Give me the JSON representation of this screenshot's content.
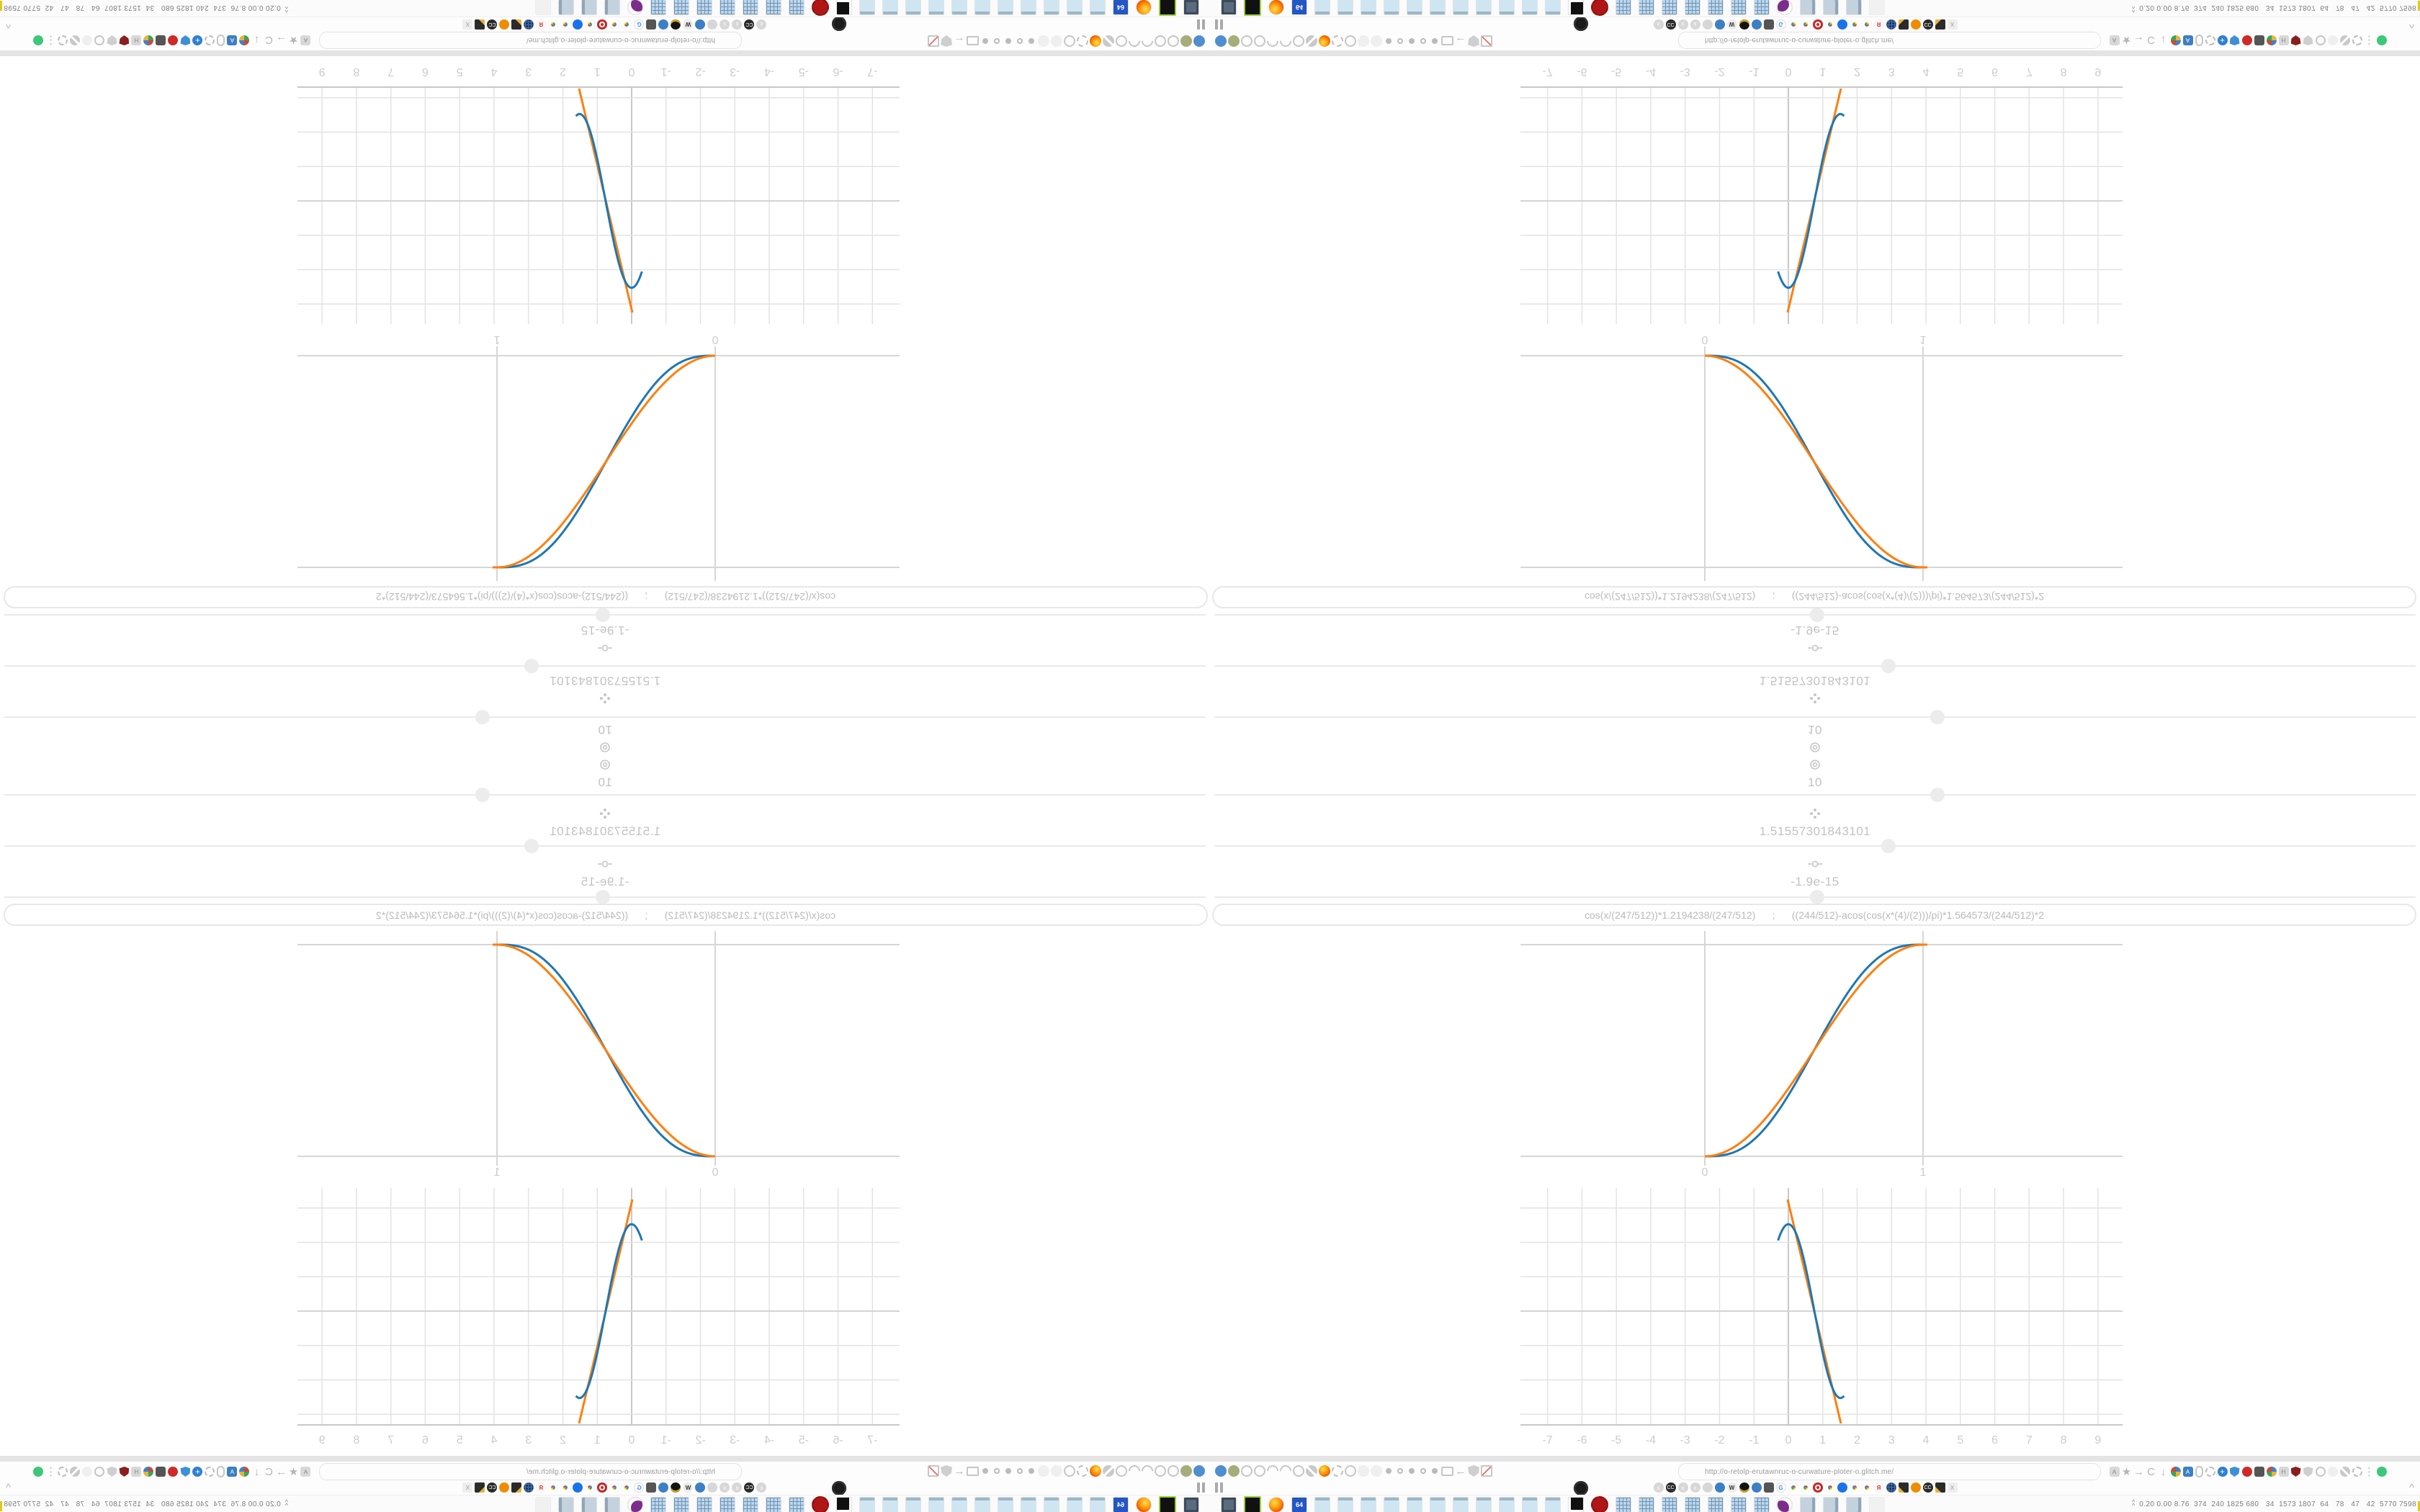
{
  "app": {
    "formula": "cos(x/(247/512))*1.2194238/(247/512)      ;      ((244/512)-acos(cos(x*(4)/(2)))/pi)*1.564573/(244/512)*2",
    "nodes": [
      {
        "icon": "dial-icon",
        "value": "10"
      },
      {
        "icon": "fan-icon",
        "value": "1.51557301843101"
      },
      {
        "icon": "coil-icon",
        "value": "-1.9e-15"
      }
    ]
  },
  "chart_data": [
    {
      "type": "line",
      "panel": "easing-comparison",
      "title": "",
      "xlabel": "",
      "ylabel": "",
      "xticks": [
        "0",
        "1"
      ],
      "xtick_values": [
        0,
        1
      ],
      "xlim": [
        -0.85,
        1.93
      ],
      "ylim": [
        -0.1,
        1.1
      ],
      "grid": {
        "x_lines": [
          0,
          1
        ],
        "y_lines": [
          0,
          1
        ]
      },
      "legend": "none",
      "series": [
        {
          "name": "cos(x/(247/512))*1.2194238/(247/512)",
          "color": "#1f77b4",
          "shape": "smootherstep rise 0-1",
          "points": [
            [
              0,
              0
            ],
            [
              0.25,
              0.1
            ],
            [
              0.5,
              0.5
            ],
            [
              0.75,
              0.9
            ],
            [
              1,
              1
            ]
          ]
        },
        {
          "name": "((244/512)-acos(cos(x*(4)/(2)))/pi)*1.564573/(244/512)*2",
          "color": "#ff7f0e",
          "shape": "cosine-ease rise 0-1",
          "points": [
            [
              0,
              0
            ],
            [
              0.25,
              0.15
            ],
            [
              0.5,
              0.5
            ],
            [
              0.75,
              0.85
            ],
            [
              1,
              1
            ]
          ]
        }
      ]
    },
    {
      "type": "line",
      "panel": "zoomed-out-grid",
      "title": "",
      "xlabel": "",
      "ylabel": "",
      "xticks": [
        "-7",
        "-6",
        "-5",
        "-4",
        "-3",
        "-2",
        "-1",
        "0",
        "1",
        "2",
        "3",
        "4",
        "5",
        "6",
        "7",
        "8",
        "9"
      ],
      "xtick_values": [
        -7,
        -6,
        -5,
        -4,
        -3,
        -2,
        -1,
        0,
        1,
        2,
        3,
        4,
        5,
        6,
        7,
        8,
        9
      ],
      "xlim": [
        -7.8,
        9.7
      ],
      "ylim": [
        -3.9,
        3.1
      ],
      "grid_spacing": 1,
      "legend": "none",
      "series": [
        {
          "name": "cosine segment",
          "color": "#1f77b4",
          "amplitude": 2.528,
          "x_range": [
            -0.3,
            1.62
          ],
          "description": "y = 2.528*cos(x/0.4824), steep descending S from peak to trough"
        },
        {
          "name": "triangle segment",
          "color": "#ff7f0e",
          "points": [
            [
              0,
              3.17
            ],
            [
              1.51,
              -3.19
            ]
          ],
          "description": "straight steep descending line"
        }
      ]
    }
  ],
  "chrome": {
    "url": "http://o-retolp-erutawnruc-o-curwature-ploter-o.glitch.me/",
    "monitor_stats": "0.20 0.00 8.76  374  240 1825 680   34  1573 1807  64   78   47   42  5770 7598",
    "row1_left": [
      "balloon-icon",
      "olive-circle-icon",
      "globe-icon",
      "globe-icon",
      "arc-icon",
      "arc-icon",
      "globe-icon",
      "wrench-icon",
      "firefox-icon",
      "gear-icon",
      "globe-icon",
      "faint-circle-icon",
      "faint-circle-icon",
      "radio-dot-icon",
      "radio-circle-icon",
      "radio-dot-icon",
      "radio-circle-icon",
      "radio-dot-icon",
      "folder-icon",
      "back-arrow-icon",
      "shield-icon",
      "blocked-page-icon"
    ],
    "row1_right": [
      "translate-icon",
      "star-icon",
      "forward-arrow-icon",
      "reload-icon",
      "download-icon",
      "highlighter-icon",
      "translate-blue-icon",
      "mouse-icon",
      "gear-icon",
      "add-blue-icon",
      "shield-blue-icon",
      "recorder-red-icon",
      "trash-icon",
      "compass-icon",
      "h-badge-icon",
      "ublock-icon",
      "shield-icon",
      "globe-icon",
      "puzzle-icon",
      "wrench-icon",
      "gear-icon",
      "overflow-menu-icon",
      "green-dot-icon"
    ],
    "row2_left": [
      "pause-icon"
    ],
    "row2_mid": [
      "vinyl-icon"
    ],
    "row2_cluster": [
      "muted-speaker-icon",
      "cc-icon",
      "muted-speaker-icon",
      "muted-speaker-icon",
      "speaker-circle-icon",
      "globe-blue-icon",
      "wikipedia-icon",
      "black-gold-icon",
      "globe-blue-icon",
      "trash-icon",
      "gtranslate-icon",
      "google-icon",
      "google-icon",
      "red-flower-icon",
      "google-icon",
      "blue-comma-icon",
      "google-icon",
      "google-icon",
      "yandex-icon",
      "grid-ball-icon",
      "photos-icon",
      "orange-burst-icon",
      "cc-icon",
      "photos-icon",
      "hourglass-icon"
    ],
    "row2_end": [
      "collapse-chevron-icon"
    ],
    "taskbar": [
      "display-settings-icon",
      "terminal-icon",
      "firefox-icon",
      "floppy64-icon",
      "notepad-icon",
      "notepad-icon",
      "notepad-icon",
      "notepad-icon",
      "notepad-icon",
      "notepad-icon",
      "notepad-icon",
      "notepad-icon",
      "notepad-icon",
      "notepad-icon",
      "notepad-icon",
      "cat-icon",
      "red-gear-icon",
      "calculator-icon",
      "calculator-icon",
      "calculator-icon",
      "calculator-icon",
      "calculator-icon",
      "calculator-icon",
      "calculator-icon",
      "owl-icon",
      "scroll-icon",
      "scroll-icon",
      "scroll-icon",
      "ghost-icon"
    ]
  }
}
